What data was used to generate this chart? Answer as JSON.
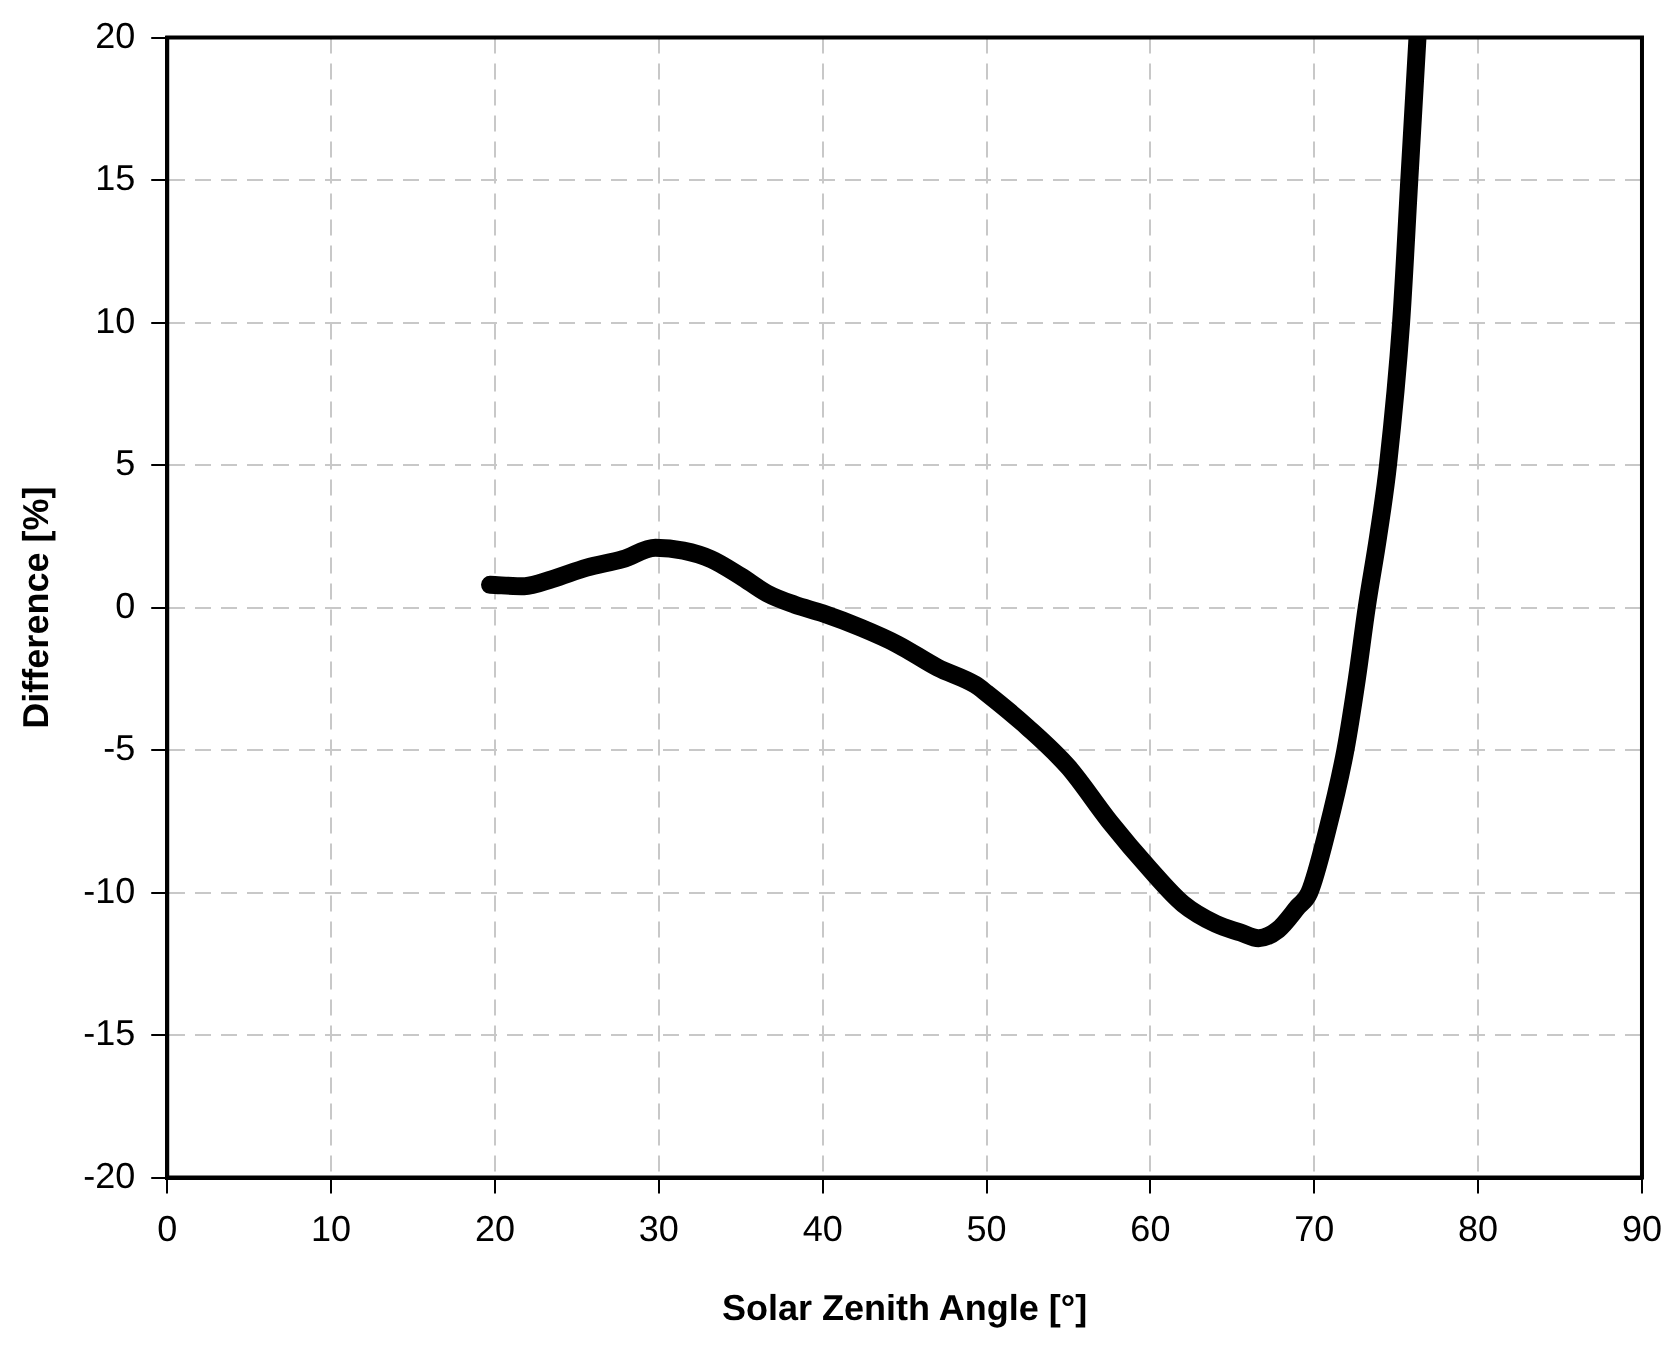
{
  "chart_data": {
    "type": "line",
    "xlabel": "Solar Zenith Angle [°]",
    "ylabel": "Difference [%]",
    "series": [
      {
        "color": "#000000",
        "x": [
          19.7,
          21.8,
          23.5,
          25.6,
          27.8,
          29.8,
          31.5,
          33.2,
          35,
          36.6,
          38.3,
          40,
          42.3,
          44.6,
          47,
          49.3,
          50,
          52.5,
          55,
          57.5,
          60,
          62,
          64,
          65.5,
          66.6,
          67.8,
          69,
          69.7,
          70.8,
          71.9,
          72.6,
          73.2,
          73.9,
          74.5,
          75.3,
          75.8,
          76.3
        ],
        "values": [
          0.8,
          0.75,
          1.0,
          1.4,
          1.7,
          2.1,
          2.0,
          1.7,
          1.1,
          0.5,
          0.1,
          -0.2,
          -0.7,
          -1.3,
          -2.1,
          -2.7,
          -3.0,
          -4.2,
          -5.6,
          -7.5,
          -9.2,
          -10.4,
          -11.1,
          -11.4,
          -11.6,
          -11.3,
          -10.5,
          -10.0,
          -7.8,
          -5,
          -2.5,
          0,
          2.5,
          5,
          10,
          15,
          20
        ]
      }
    ],
    "xlim": [
      0,
      90
    ],
    "xticks": [
      0,
      10,
      20,
      30,
      40,
      50,
      60,
      70,
      80,
      90
    ],
    "ylim": [
      -20,
      20
    ],
    "yticks": [
      -20,
      -15,
      -10,
      -5,
      0,
      5,
      10,
      15,
      20
    ],
    "grid": true,
    "line_style": "solid",
    "marker": "none"
  }
}
